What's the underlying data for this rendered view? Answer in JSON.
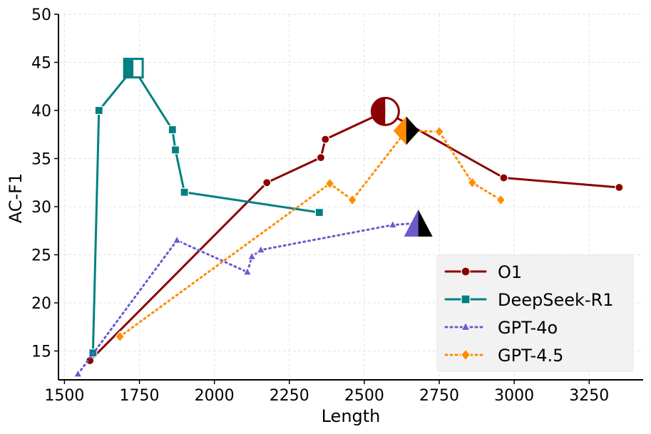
{
  "chart_data": {
    "type": "line",
    "xlabel": "Length",
    "ylabel": "AC-F1",
    "xlim": [
      1480,
      3430
    ],
    "ylim": [
      12,
      50
    ],
    "xticks": [
      1500,
      1750,
      2000,
      2250,
      2500,
      2750,
      3000,
      3250
    ],
    "xtick_labels": [
      "1500",
      "1750",
      "2000",
      "2250",
      "2500",
      "2750",
      "3000",
      "3250"
    ],
    "yticks": [
      15,
      20,
      25,
      30,
      35,
      40,
      45,
      50
    ],
    "ytick_labels": [
      "15",
      "20",
      "25",
      "30",
      "35",
      "40",
      "45",
      "50"
    ],
    "grid": true,
    "legend_position": "bottom-right",
    "series": [
      {
        "name": "O1",
        "color": "#8b0000",
        "linestyle": "solid",
        "marker": "circle",
        "big_marker": "half-circle",
        "points": [
          [
            1585,
            14.0
          ],
          [
            2175,
            32.5
          ],
          [
            2355,
            35.1
          ],
          [
            2370,
            37.0
          ],
          [
            2570,
            39.9
          ],
          [
            2965,
            33.0
          ],
          [
            3350,
            32.0
          ]
        ],
        "highlight": [
          2570,
          39.9
        ]
      },
      {
        "name": "DeepSeek-R1",
        "color": "#008080",
        "linestyle": "solid",
        "marker": "square",
        "big_marker": "half-square",
        "points": [
          [
            1595,
            14.8
          ],
          [
            1615,
            40.0
          ],
          [
            1730,
            44.4
          ],
          [
            1860,
            38.0
          ],
          [
            1870,
            35.9
          ],
          [
            1900,
            31.5
          ],
          [
            2350,
            29.4
          ]
        ],
        "highlight": [
          1730,
          44.4
        ]
      },
      {
        "name": "GPT-4o",
        "color": "#6a5acd",
        "linestyle": "dotted",
        "marker": "triangle",
        "big_marker": "half-triangle",
        "points": [
          [
            1545,
            12.6
          ],
          [
            1875,
            26.5
          ],
          [
            2110,
            23.2
          ],
          [
            2125,
            24.8
          ],
          [
            2155,
            25.5
          ],
          [
            2595,
            28.1
          ],
          [
            2680,
            28.3
          ]
        ],
        "highlight": [
          2680,
          28.3
        ]
      },
      {
        "name": "GPT-4.5",
        "color": "#ff8c00",
        "linestyle": "dotted",
        "marker": "diamond",
        "big_marker": "half-diamond",
        "points": [
          [
            1685,
            16.5
          ],
          [
            2385,
            32.4
          ],
          [
            2460,
            30.7
          ],
          [
            2640,
            37.9
          ],
          [
            2750,
            37.8
          ],
          [
            2860,
            32.5
          ],
          [
            2955,
            30.7
          ]
        ],
        "highlight": [
          2640,
          37.9
        ]
      }
    ]
  }
}
